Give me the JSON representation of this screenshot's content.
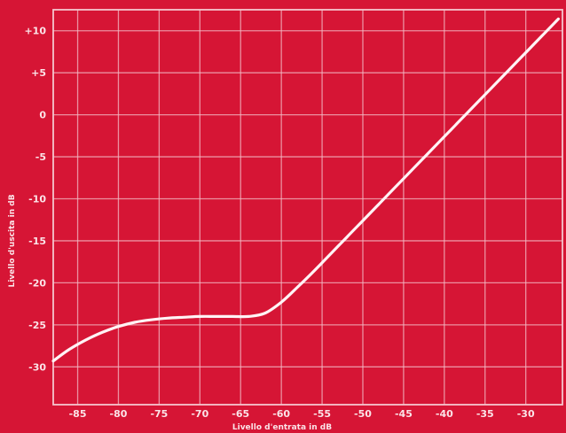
{
  "chart_data": {
    "type": "line",
    "title": "",
    "xlabel": "Livello d'entrata in dB",
    "ylabel": "Livello d'uscita in dB",
    "xlim": [
      -88,
      -25.5
    ],
    "ylim": [
      -34.5,
      12.5
    ],
    "x_ticks": [
      -85,
      -80,
      -75,
      -70,
      -65,
      -60,
      -55,
      -50,
      -45,
      -40,
      -35,
      -30
    ],
    "x_tick_labels": [
      "-85",
      "-80",
      "-75",
      "-70",
      "-65",
      "-60",
      "-55",
      "-50",
      "-45",
      "-40",
      "-35",
      "-30"
    ],
    "y_ticks": [
      10,
      5,
      0,
      -5,
      -10,
      -15,
      -20,
      -25,
      -30
    ],
    "y_tick_labels": [
      "+10",
      "+5",
      "0",
      "-5",
      "-10",
      "-15",
      "-20",
      "-25",
      "-30"
    ],
    "grid": true,
    "background_color": "#d61535",
    "line_color": "#fff3f5",
    "series": [
      {
        "x": [
          -88,
          -86,
          -84,
          -82,
          -80,
          -78,
          -76,
          -74,
          -72,
          -70,
          -68,
          -66,
          -64,
          -62,
          -60,
          -58,
          -56,
          -54,
          -52,
          -50,
          -48,
          -46,
          -44,
          -42,
          -40,
          -38,
          -36,
          -34,
          -32,
          -30,
          -28,
          -26
        ],
        "values": [
          -29.3,
          -27.9,
          -26.8,
          -25.9,
          -25.2,
          -24.7,
          -24.4,
          -24.2,
          -24.1,
          -24.0,
          -24.0,
          -24.0,
          -24.0,
          -23.6,
          -22.3,
          -20.5,
          -18.6,
          -16.6,
          -14.6,
          -12.6,
          -10.6,
          -8.6,
          -6.6,
          -4.6,
          -2.6,
          -0.6,
          1.4,
          3.4,
          5.4,
          7.4,
          9.4,
          11.4
        ]
      }
    ]
  }
}
